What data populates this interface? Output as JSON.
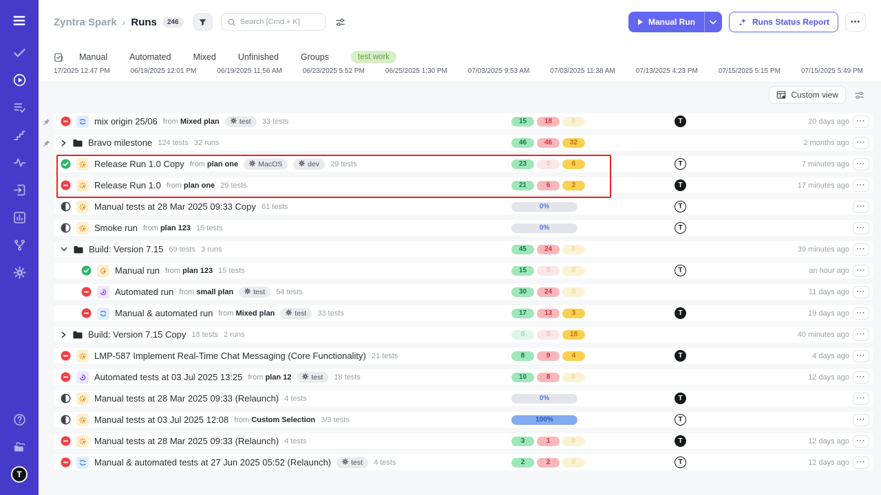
{
  "colors": {
    "sidebar": "#463acb",
    "accent": "#6366f1",
    "highlight_box": "#e5261f",
    "passed": "#2fb66a",
    "failed": "#f04045",
    "count_green": "#9fe7ba",
    "count_red": "#f7b8bd",
    "count_yellow": "#fbd052",
    "tag_green_bg": "#d8eec6"
  },
  "sidebar": {
    "menu_icon": "menu-icon",
    "items": [
      {
        "icon": "check-icon",
        "active": false
      },
      {
        "icon": "play-circle-icon",
        "active": true
      },
      {
        "icon": "list-check-icon",
        "active": false
      },
      {
        "icon": "steps-icon",
        "active": false
      },
      {
        "icon": "pulse-icon",
        "active": false
      },
      {
        "icon": "import-icon",
        "active": false
      },
      {
        "icon": "bar-chart-icon",
        "active": false
      },
      {
        "icon": "branch-icon",
        "active": false
      },
      {
        "icon": "gear-icon",
        "active": false
      }
    ],
    "bottom_items": [
      {
        "icon": "help-icon"
      },
      {
        "icon": "folder-stack-icon"
      }
    ],
    "avatar_letter": "T"
  },
  "header": {
    "project": "Zyntra Spark",
    "page": "Runs",
    "count": "246",
    "search_placeholder": "Search [Cmd + K]",
    "manual_run_label": "Manual Run",
    "report_label": "Runs Status Report",
    "more_label": "•••"
  },
  "filterbar": {
    "tabs": [
      "Manual",
      "Automated",
      "Mixed",
      "Unfinished",
      "Groups"
    ],
    "tag": "test work"
  },
  "timeline_dates": [
    "17/2025 12:47 PM",
    "06/18/2025 12:01 PM",
    "06/19/2025 11:56 AM",
    "06/23/2025 5:52 PM",
    "06/25/2025 1:30 PM",
    "07/03/2025 9:53 AM",
    "07/03/2025 11:38 AM",
    "07/13/2025 4:23 PM",
    "07/15/2025 5:15 PM",
    "07/15/2025 5:49 PM"
  ],
  "toolbar": {
    "custom_view_label": "Custom view"
  },
  "annotation": {
    "type": "red-highlight-box",
    "around": [
      "Release Run 1.0 Copy",
      "Release Run 1.0"
    ]
  },
  "rows": [
    {
      "kind": "run",
      "pinned": true,
      "status": "failed",
      "type": "mixed",
      "title": "mix origin 25/06",
      "from": "Mixed plan",
      "tags": [
        "test"
      ],
      "tests": "33 tests",
      "counts": [
        {
          "v": "15",
          "c": "green"
        },
        {
          "v": "18",
          "c": "red"
        },
        {
          "v": "0",
          "c": "yellow",
          "faded": true
        }
      ],
      "avatar": "dark",
      "time": "20 days ago"
    },
    {
      "kind": "group",
      "pinned": true,
      "chevron": "right",
      "title": "Bravo milestone",
      "tests": "124 tests",
      "runs": "32 runs",
      "counts": [
        {
          "v": "46",
          "c": "green"
        },
        {
          "v": "46",
          "c": "red"
        },
        {
          "v": "32",
          "c": "yellow"
        }
      ],
      "avatar": null,
      "time": "2 months ago"
    },
    {
      "kind": "run",
      "status": "passed",
      "type": "manual",
      "title": "Release Run 1.0 Copy",
      "from": "plan one",
      "tags": [
        "MacOS",
        "dev"
      ],
      "tests": "29 tests",
      "counts": [
        {
          "v": "23",
          "c": "green"
        },
        {
          "v": "0",
          "c": "red",
          "faded": true
        },
        {
          "v": "6",
          "c": "yellow"
        }
      ],
      "avatar": "light",
      "time": "7 minutes ago"
    },
    {
      "kind": "run",
      "status": "failed",
      "type": "manual",
      "title": "Release Run 1.0",
      "from": "plan one",
      "tests": "29 tests",
      "counts": [
        {
          "v": "21",
          "c": "green"
        },
        {
          "v": "6",
          "c": "red"
        },
        {
          "v": "2",
          "c": "yellow"
        }
      ],
      "avatar": "dark",
      "time": "17 minutes ago"
    },
    {
      "kind": "run",
      "status": "inprogress",
      "type": "manual",
      "title": "Manual tests at 28 Mar 2025 09:33 Copy",
      "tests": "61 tests",
      "progress": {
        "pct": 0,
        "label": "0%"
      },
      "avatar": "light",
      "time": ""
    },
    {
      "kind": "run",
      "status": "inprogress",
      "type": "manual",
      "title": "Smoke run",
      "from": "plan 123",
      "tests": "15 tests",
      "progress": {
        "pct": 0,
        "label": "0%"
      },
      "avatar": "light",
      "time": ""
    },
    {
      "kind": "group",
      "chevron": "down",
      "title": "Build: Version 7.15",
      "tests": "69 tests",
      "runs": "3 runs",
      "counts": [
        {
          "v": "45",
          "c": "green"
        },
        {
          "v": "24",
          "c": "red"
        },
        {
          "v": "0",
          "c": "yellow",
          "faded": true
        }
      ],
      "avatar": null,
      "time": "39 minutes ago"
    },
    {
      "kind": "run",
      "indent": true,
      "status": "passed",
      "type": "manual",
      "title": "Manual run",
      "from": "plan 123",
      "tests": "15 tests",
      "counts": [
        {
          "v": "15",
          "c": "green"
        },
        {
          "v": "0",
          "c": "red",
          "faded": true
        },
        {
          "v": "0",
          "c": "yellow",
          "faded": true
        }
      ],
      "avatar": "light",
      "time": "an hour ago"
    },
    {
      "kind": "run",
      "indent": true,
      "status": "failed",
      "type": "automated",
      "title": "Automated run",
      "from": "small plan",
      "tags": [
        "test"
      ],
      "tests": "54 tests",
      "counts": [
        {
          "v": "30",
          "c": "green"
        },
        {
          "v": "24",
          "c": "red"
        },
        {
          "v": "0",
          "c": "yellow",
          "faded": true
        }
      ],
      "avatar": null,
      "time": "11 days ago"
    },
    {
      "kind": "run",
      "indent": true,
      "status": "failed",
      "type": "mixed",
      "title": "Manual & automated run",
      "from": "Mixed plan",
      "tags": [
        "test"
      ],
      "tests": "33 tests",
      "counts": [
        {
          "v": "17",
          "c": "green"
        },
        {
          "v": "13",
          "c": "red"
        },
        {
          "v": "3",
          "c": "yellow"
        }
      ],
      "avatar": "dark",
      "time": "19 days ago"
    },
    {
      "kind": "group",
      "chevron": "right",
      "title": "Build: Version 7.15 Copy",
      "tests": "18 tests",
      "runs": "2 runs",
      "counts": [
        {
          "v": "0",
          "c": "green",
          "faded": true
        },
        {
          "v": "0",
          "c": "red",
          "faded": true
        },
        {
          "v": "18",
          "c": "yellow"
        }
      ],
      "avatar": null,
      "time": "40 minutes ago"
    },
    {
      "kind": "run",
      "status": "failed",
      "type": "manual",
      "title": "LMP-587 Implement Real-Time Chat Messaging (Core Functionality)",
      "tests": "21 tests",
      "counts": [
        {
          "v": "8",
          "c": "green"
        },
        {
          "v": "9",
          "c": "red"
        },
        {
          "v": "4",
          "c": "yellow"
        }
      ],
      "avatar": "dark",
      "time": "4 days ago"
    },
    {
      "kind": "run",
      "status": "failed",
      "type": "automated",
      "title": "Automated tests at 03 Jul 2025 13:25",
      "from": "plan 12",
      "tags": [
        "test"
      ],
      "tests": "18 tests",
      "counts": [
        {
          "v": "10",
          "c": "green"
        },
        {
          "v": "8",
          "c": "red"
        },
        {
          "v": "0",
          "c": "yellow",
          "faded": true
        }
      ],
      "avatar": null,
      "time": "12 days ago"
    },
    {
      "kind": "run",
      "status": "inprogress",
      "type": "manual",
      "title": "Manual tests at 28 Mar 2025 09:33 (Relaunch)",
      "tests": "4 tests",
      "progress": {
        "pct": 0,
        "label": "0%"
      },
      "avatar": "dark",
      "time": ""
    },
    {
      "kind": "run",
      "status": "inprogress",
      "type": "manual",
      "title": "Manual tests at 03 Jul 2025 12:08",
      "from": "Custom Selection",
      "tests": "3/3 tests",
      "progress": {
        "pct": 100,
        "label": "100%"
      },
      "avatar": "light",
      "time": ""
    },
    {
      "kind": "run",
      "status": "failed",
      "type": "manual",
      "title": "Manual tests at 28 Mar 2025 09:33 (Relaunch)",
      "tests": "4 tests",
      "counts": [
        {
          "v": "3",
          "c": "green"
        },
        {
          "v": "1",
          "c": "red"
        },
        {
          "v": "0",
          "c": "yellow",
          "faded": true
        }
      ],
      "avatar": "dark",
      "time": "12 days ago"
    },
    {
      "kind": "run",
      "status": "failed",
      "type": "mixed",
      "title": "Manual & automated tests at 27 Jun 2025 05:52 (Relaunch)",
      "tags": [
        "test"
      ],
      "tests": "4 tests",
      "counts": [
        {
          "v": "2",
          "c": "green"
        },
        {
          "v": "2",
          "c": "red"
        },
        {
          "v": "0",
          "c": "yellow",
          "faded": true
        }
      ],
      "avatar": "light",
      "time": "12 days ago"
    }
  ]
}
